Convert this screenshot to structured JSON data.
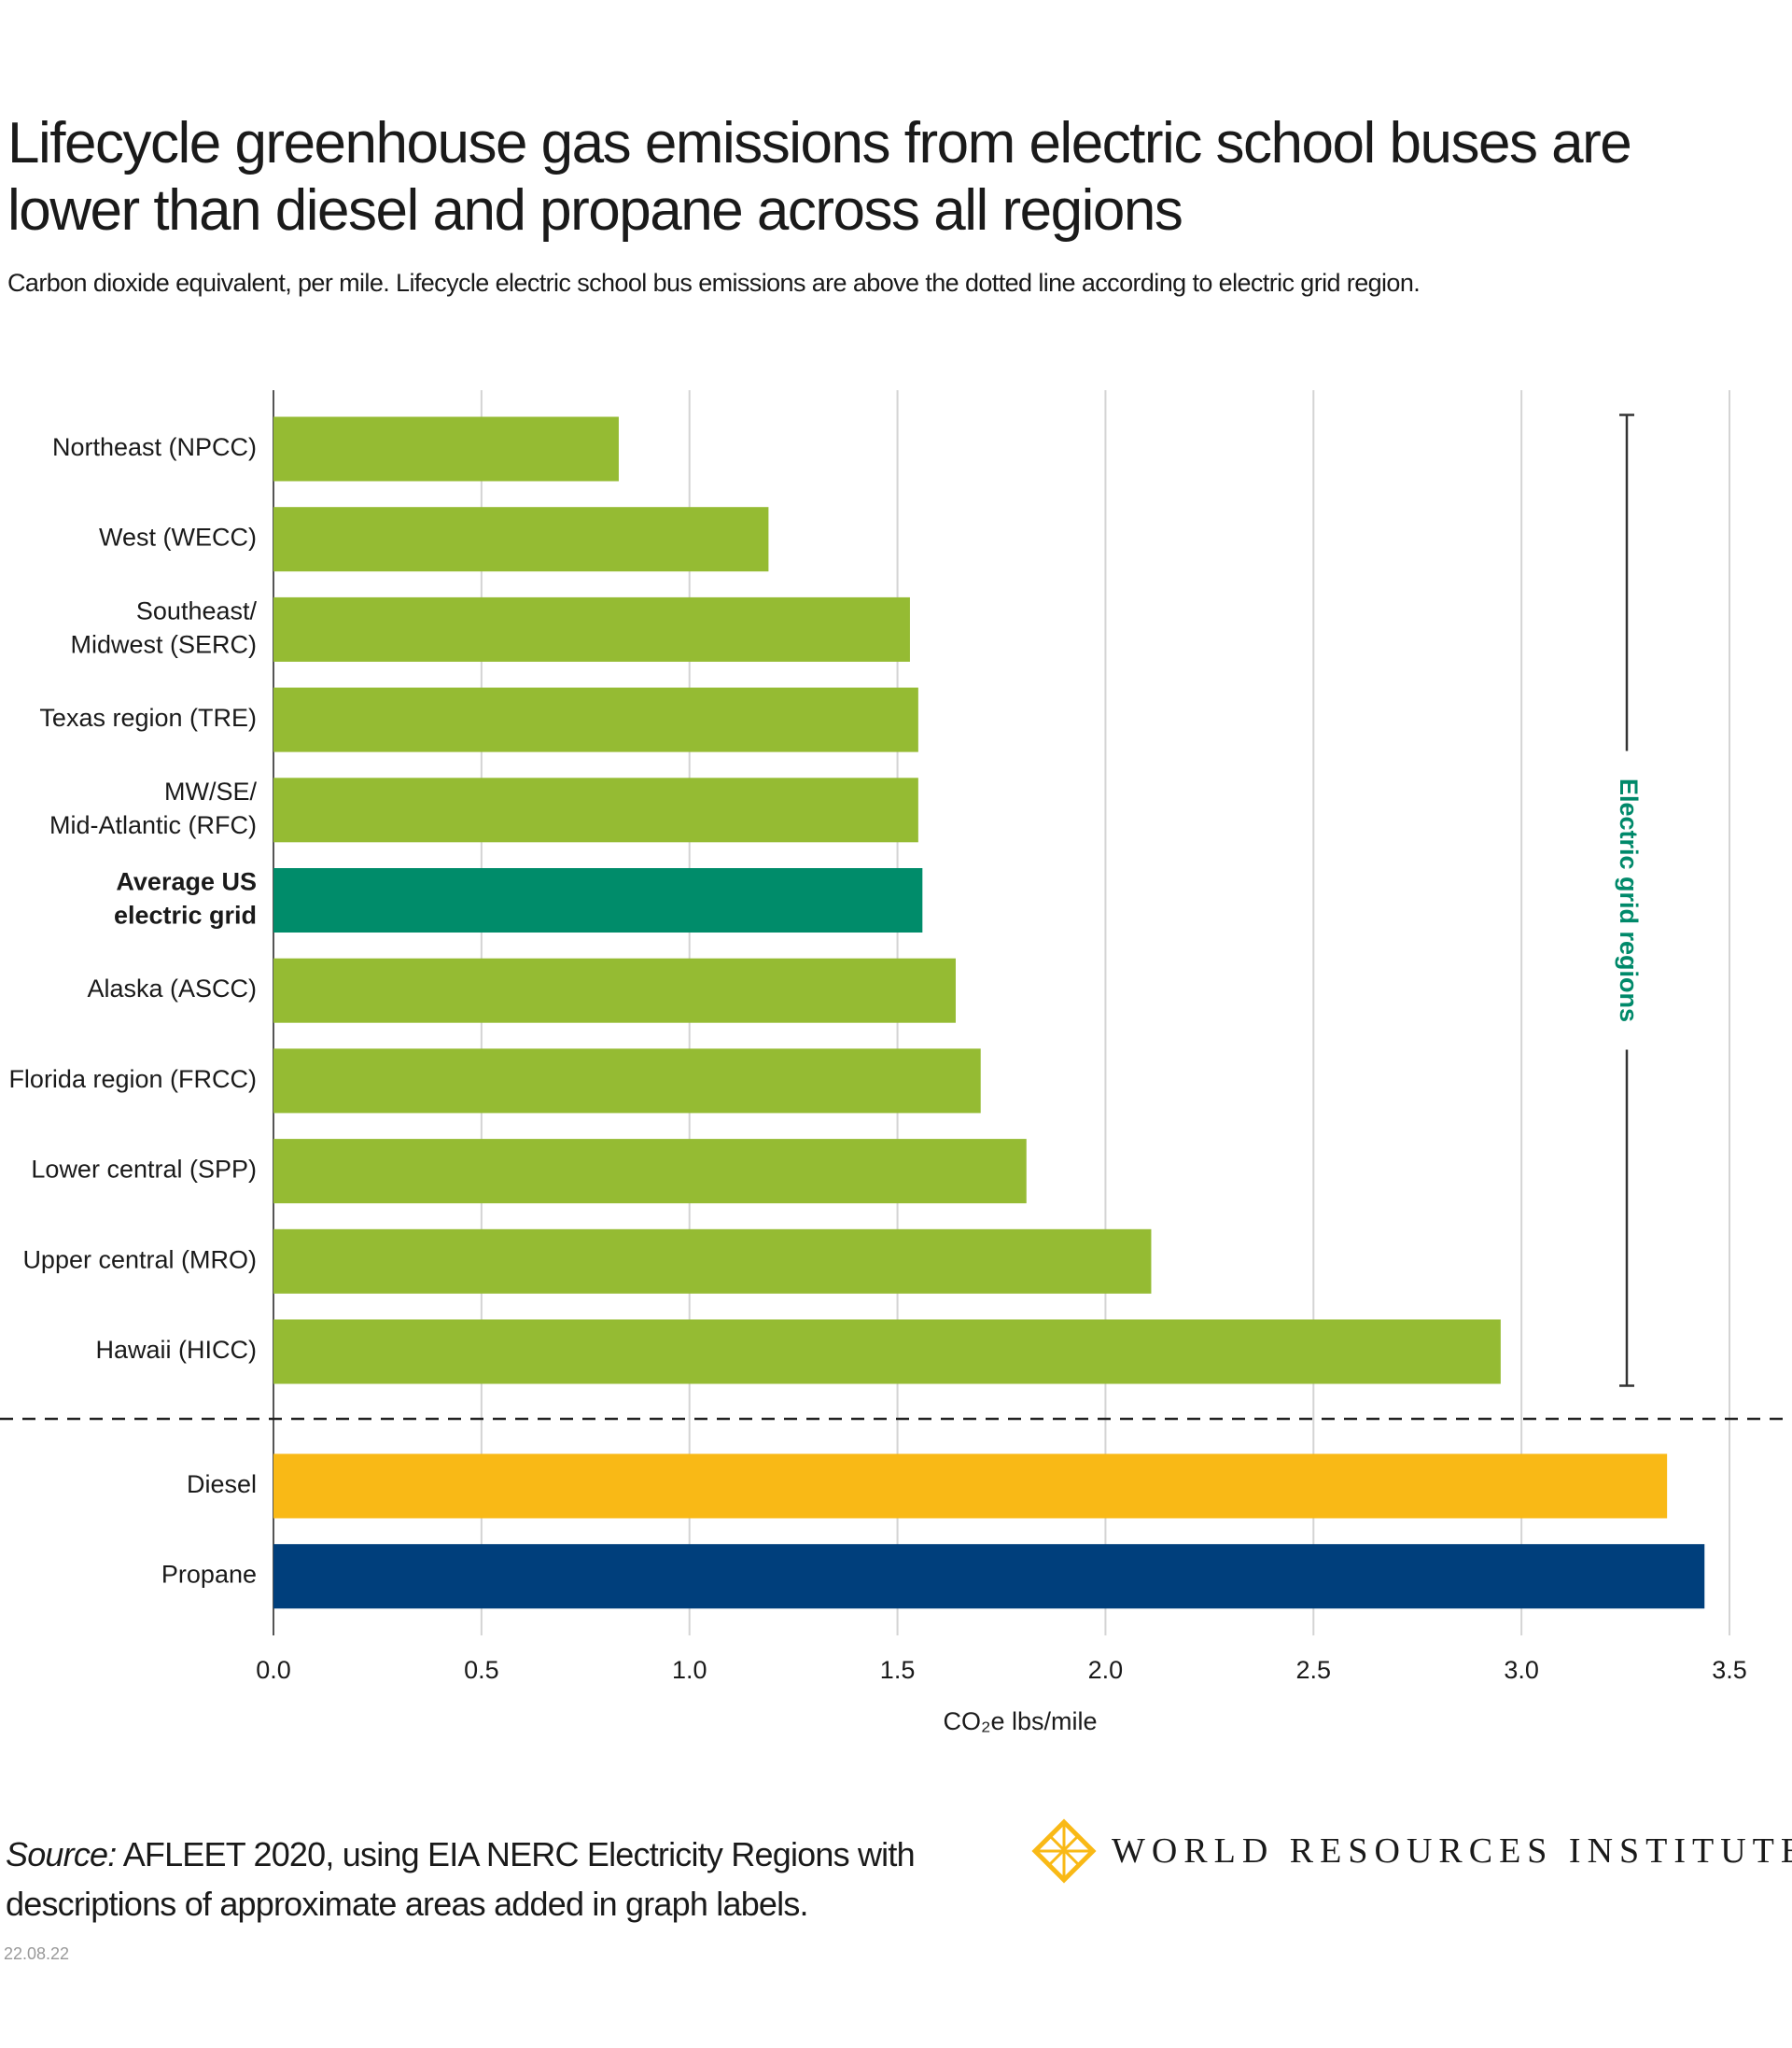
{
  "chart_data": {
    "type": "hbar",
    "title": "Lifecycle greenhouse gas emissions from electric school buses are lower than diesel and propane across all regions",
    "subtitle": "Carbon dioxide equivalent, per mile. Lifecycle electric school bus emissions are above the dotted line according to electric grid region.",
    "categories": [
      [
        "Northeast (NPCC)"
      ],
      [
        "West (WECC)"
      ],
      [
        "Southeast/",
        "Midwest (SERC)"
      ],
      [
        "Texas region (TRE)"
      ],
      [
        "MW/SE/",
        "Mid-Atlantic (RFC)"
      ],
      [
        "Average US",
        "electric grid"
      ],
      [
        "Alaska (ASCC)"
      ],
      [
        "Florida region (FRCC)"
      ],
      [
        "Lower central (SPP)"
      ],
      [
        "Upper central (MRO)"
      ],
      [
        "Hawaii (HICC)"
      ],
      [
        "Diesel"
      ],
      [
        "Propane"
      ]
    ],
    "values": [
      0.83,
      1.19,
      1.53,
      1.55,
      1.55,
      1.56,
      1.64,
      1.7,
      1.81,
      2.11,
      2.95,
      3.35,
      3.44
    ],
    "colors": [
      "#95bb33",
      "#95bb33",
      "#95bb33",
      "#95bb33",
      "#95bb33",
      "#008c6a",
      "#95bb33",
      "#95bb33",
      "#95bb33",
      "#95bb33",
      "#95bb33",
      "#f9b916",
      "#003f7c"
    ],
    "bold_category_index": 5,
    "group_break_after": 10,
    "annotation": {
      "text": "Electric grid regions",
      "color": "#00896a"
    },
    "x_label": "CO₂e lbs/mile",
    "xlim": [
      0,
      3.5
    ],
    "xticks": [
      {
        "value": 0,
        "label": "0.0"
      },
      0.5,
      {
        "value": 1,
        "label": "1.0"
      },
      1.5,
      {
        "value": 2,
        "label": "2.0"
      },
      2.5,
      {
        "value": 3,
        "label": "3.0"
      },
      3.5
    ],
    "grid": true
  },
  "footer": {
    "source_label": "Source:",
    "source": "AFLEET 2020, using EIA NERC Electricity Regions with descriptions of approximate areas added in graph labels.",
    "date": "22.08.22",
    "logo": "WORLD RESOURCES INSTITUTE"
  }
}
